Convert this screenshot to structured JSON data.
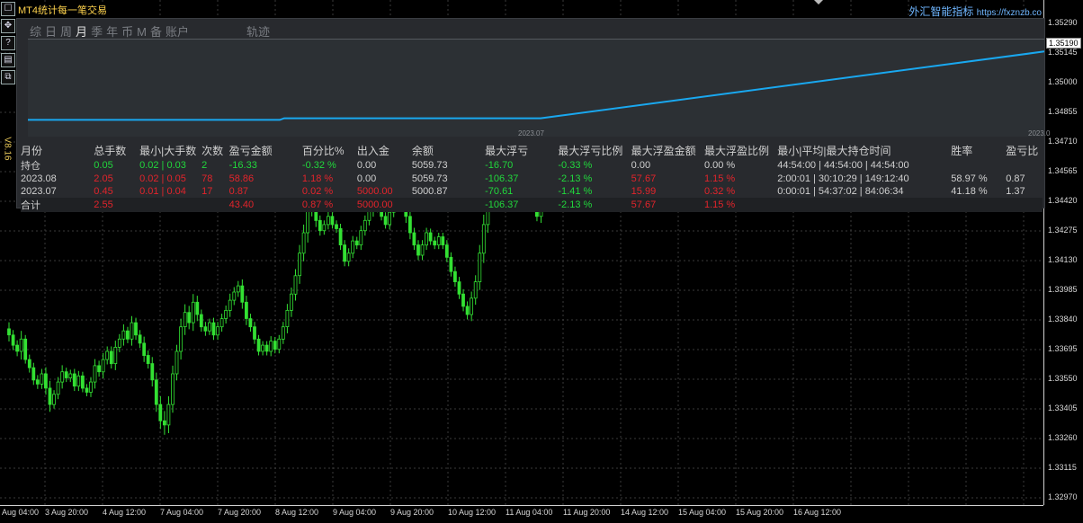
{
  "window": {
    "title": "MT4统计每一笔交易",
    "brand_name": "外汇智能指标",
    "brand_url": "https://fxznzb.co",
    "version": "V8.16"
  },
  "left_tools": [
    {
      "icon": "window-restore-icon",
      "glyph": "☐"
    },
    {
      "icon": "move-icon",
      "glyph": "✥"
    },
    {
      "icon": "help-icon",
      "glyph": "?"
    },
    {
      "icon": "layout-icon",
      "glyph": "▤"
    },
    {
      "icon": "copy-icon",
      "glyph": "⧉"
    }
  ],
  "tabs": [
    {
      "label": "综",
      "active": false
    },
    {
      "label": "日",
      "active": false
    },
    {
      "label": "周",
      "active": false
    },
    {
      "label": "月",
      "active": true
    },
    {
      "label": "季",
      "active": false
    },
    {
      "label": "年",
      "active": false
    },
    {
      "label": "币",
      "active": false
    },
    {
      "label": "M",
      "active": false
    },
    {
      "label": "备",
      "active": false
    },
    {
      "label": "账户",
      "active": false
    },
    {
      "label": "轨迹",
      "active": false
    }
  ],
  "equity": {
    "date_labels": [
      "2023.07",
      "2023.0"
    ],
    "line_color": "#19a8f0",
    "y_values": [
      1.3476,
      1.3476,
      1.3477,
      1.3477,
      1.3519
    ]
  },
  "stats": {
    "headers": [
      "月份",
      "总手数",
      "最小|大手数",
      "次数",
      "盈亏金额",
      "百分比%",
      "出入金",
      "余额",
      "最大浮亏",
      "最大浮亏比例",
      "最大浮盈金额",
      "最大浮盈比例",
      "最小|平均|最大持仓时间",
      "胜率",
      "盈亏比"
    ],
    "rows": [
      {
        "cells": [
          "持仓",
          "0.05",
          "0.02 | 0.03",
          "2",
          "-16.33",
          "-0.32 %",
          "0.00",
          "5059.73",
          "-16.70",
          "-0.33 %",
          "0.00",
          "0.00 %",
          "44:54:00 | 44:54:00 | 44:54:00",
          "",
          ""
        ],
        "colors": [
          "white",
          "green",
          "green",
          "green",
          "green",
          "green",
          "white",
          "white",
          "green",
          "green",
          "white",
          "white",
          "white",
          "white",
          "white"
        ]
      },
      {
        "cells": [
          "2023.08",
          "2.05",
          "0.02 | 0.05",
          "78",
          "58.86",
          "1.18 %",
          "0.00",
          "5059.73",
          "-106.37",
          "-2.13 %",
          "57.67",
          "1.15 %",
          "2:00:01 | 30:10:29 | 149:12:40",
          "58.97 %",
          "0.87"
        ],
        "colors": [
          "white",
          "red",
          "red",
          "red",
          "red",
          "red",
          "white",
          "white",
          "green",
          "green",
          "red",
          "red",
          "white",
          "white",
          "white"
        ]
      },
      {
        "cells": [
          "2023.07",
          "0.45",
          "0.01 | 0.04",
          "17",
          "0.87",
          "0.02 %",
          "5000.00",
          "5000.87",
          "-70.61",
          "-1.41 %",
          "15.99",
          "0.32 %",
          "0:00:01 | 54:37:02 | 84:06:34",
          "41.18 %",
          "1.37"
        ],
        "colors": [
          "white",
          "red",
          "red",
          "red",
          "red",
          "red",
          "red",
          "white",
          "green",
          "green",
          "red",
          "red",
          "white",
          "white",
          "white"
        ]
      }
    ],
    "total": {
      "cells": [
        "合计",
        "2.55",
        "",
        "",
        "43.40",
        "0.87 %",
        "5000.00",
        "",
        "-106.37",
        "-2.13 %",
        "57.67",
        "1.15 %",
        "",
        "",
        ""
      ],
      "colors": [
        "white",
        "red",
        "white",
        "white",
        "red",
        "red",
        "red",
        "white",
        "green",
        "green",
        "red",
        "red",
        "white",
        "white",
        "white"
      ]
    }
  },
  "price_axis": {
    "labels": [
      "1.35290",
      "1.35145",
      "1.35000",
      "1.34855",
      "1.34710",
      "1.34565",
      "1.34420",
      "1.34275",
      "1.34130",
      "1.33985",
      "1.33840",
      "1.33695",
      "1.33550",
      "1.33405",
      "1.33260",
      "1.33115",
      "1.32970"
    ],
    "current_price": "1.35190",
    "price_min": 1.3297,
    "price_max": 1.3529
  },
  "time_axis": {
    "labels": [
      "Aug 04:00",
      "3 Aug 20:00",
      "4 Aug 12:00",
      "7 Aug 04:00",
      "7 Aug 20:00",
      "8 Aug 12:00",
      "9 Aug 04:00",
      "9 Aug 20:00",
      "10 Aug 12:00",
      "11 Aug 04:00",
      "11 Aug 20:00",
      "14 Aug 12:00",
      "15 Aug 04:00",
      "15 Aug 20:00",
      "16 Aug 12:00"
    ]
  },
  "candles": {
    "color": "#33e033",
    "closes": [
      1.3374,
      1.3369,
      1.3366,
      1.3372,
      1.3362,
      1.3358,
      1.3352,
      1.335,
      1.3355,
      1.3348,
      1.334,
      1.3345,
      1.3351,
      1.3356,
      1.3353,
      1.3355,
      1.3349,
      1.3354,
      1.3348,
      1.3346,
      1.3351,
      1.3359,
      1.3356,
      1.3362,
      1.3366,
      1.336,
      1.3368,
      1.3372,
      1.3376,
      1.3372,
      1.338,
      1.3374,
      1.337,
      1.3364,
      1.336,
      1.3352,
      1.334,
      1.3332,
      1.333,
      1.334,
      1.3355,
      1.3366,
      1.3378,
      1.3385,
      1.338,
      1.339,
      1.3384,
      1.3378,
      1.3376,
      1.338,
      1.3374,
      1.3378,
      1.3382,
      1.3386,
      1.3391,
      1.3395,
      1.3398,
      1.339,
      1.3382,
      1.3378,
      1.3372,
      1.3366,
      1.3369,
      1.3366,
      1.3371,
      1.3367,
      1.3372,
      1.3378,
      1.3386,
      1.3394,
      1.3403,
      1.3414,
      1.3424,
      1.3436,
      1.344,
      1.343,
      1.3425,
      1.3428,
      1.3432,
      1.3428,
      1.3426,
      1.3418,
      1.341,
      1.3414,
      1.342,
      1.3418,
      1.3425,
      1.343,
      1.3435,
      1.344,
      1.3436,
      1.3432,
      1.3428,
      1.3434,
      1.3438,
      1.3442,
      1.344,
      1.3432,
      1.3424,
      1.3418,
      1.3413,
      1.3418,
      1.3424,
      1.342,
      1.3418,
      1.3422,
      1.3418,
      1.3412,
      1.3405,
      1.34,
      1.3394,
      1.3388,
      1.3384,
      1.3392,
      1.34,
      1.3414,
      1.3428,
      1.344,
      1.3448,
      1.3452,
      1.3448,
      1.3445,
      1.3448,
      1.3442,
      1.344,
      1.3446,
      1.345,
      1.3444,
      1.3438,
      1.3432,
      1.344,
      1.3446,
      1.3452,
      1.3448,
      1.3442,
      1.3448,
      1.3452,
      1.3448,
      1.3454
    ],
    "ranges": [
      8,
      6,
      6,
      10,
      5,
      6,
      6,
      6,
      6,
      8,
      9,
      5,
      6,
      8,
      5,
      5,
      6,
      6,
      5,
      5,
      6,
      8,
      6,
      8,
      6,
      6,
      8,
      6,
      8,
      5,
      8,
      6,
      6,
      8,
      6,
      8,
      9,
      10,
      12,
      10,
      10,
      8,
      10,
      10,
      8,
      10,
      8,
      6,
      6,
      5,
      6,
      6,
      6,
      6,
      8,
      6,
      6,
      8,
      8,
      6,
      6,
      5,
      5,
      5,
      6,
      5,
      5,
      6,
      8,
      8,
      8,
      10,
      10,
      12,
      10,
      8,
      6,
      5,
      6,
      5,
      5,
      6,
      6,
      6,
      6,
      5,
      6,
      6,
      6,
      8,
      5,
      5,
      5,
      6,
      6,
      6,
      5,
      8,
      8,
      6,
      6,
      6,
      6,
      5,
      5,
      5,
      5,
      6,
      6,
      6,
      6,
      6,
      6,
      8,
      8,
      10,
      12,
      10,
      8,
      6,
      6,
      5,
      6,
      6,
      5,
      6,
      6,
      6,
      6,
      6,
      8,
      6,
      6,
      5,
      6,
      8,
      6,
      6,
      6,
      6,
      8
    ]
  }
}
